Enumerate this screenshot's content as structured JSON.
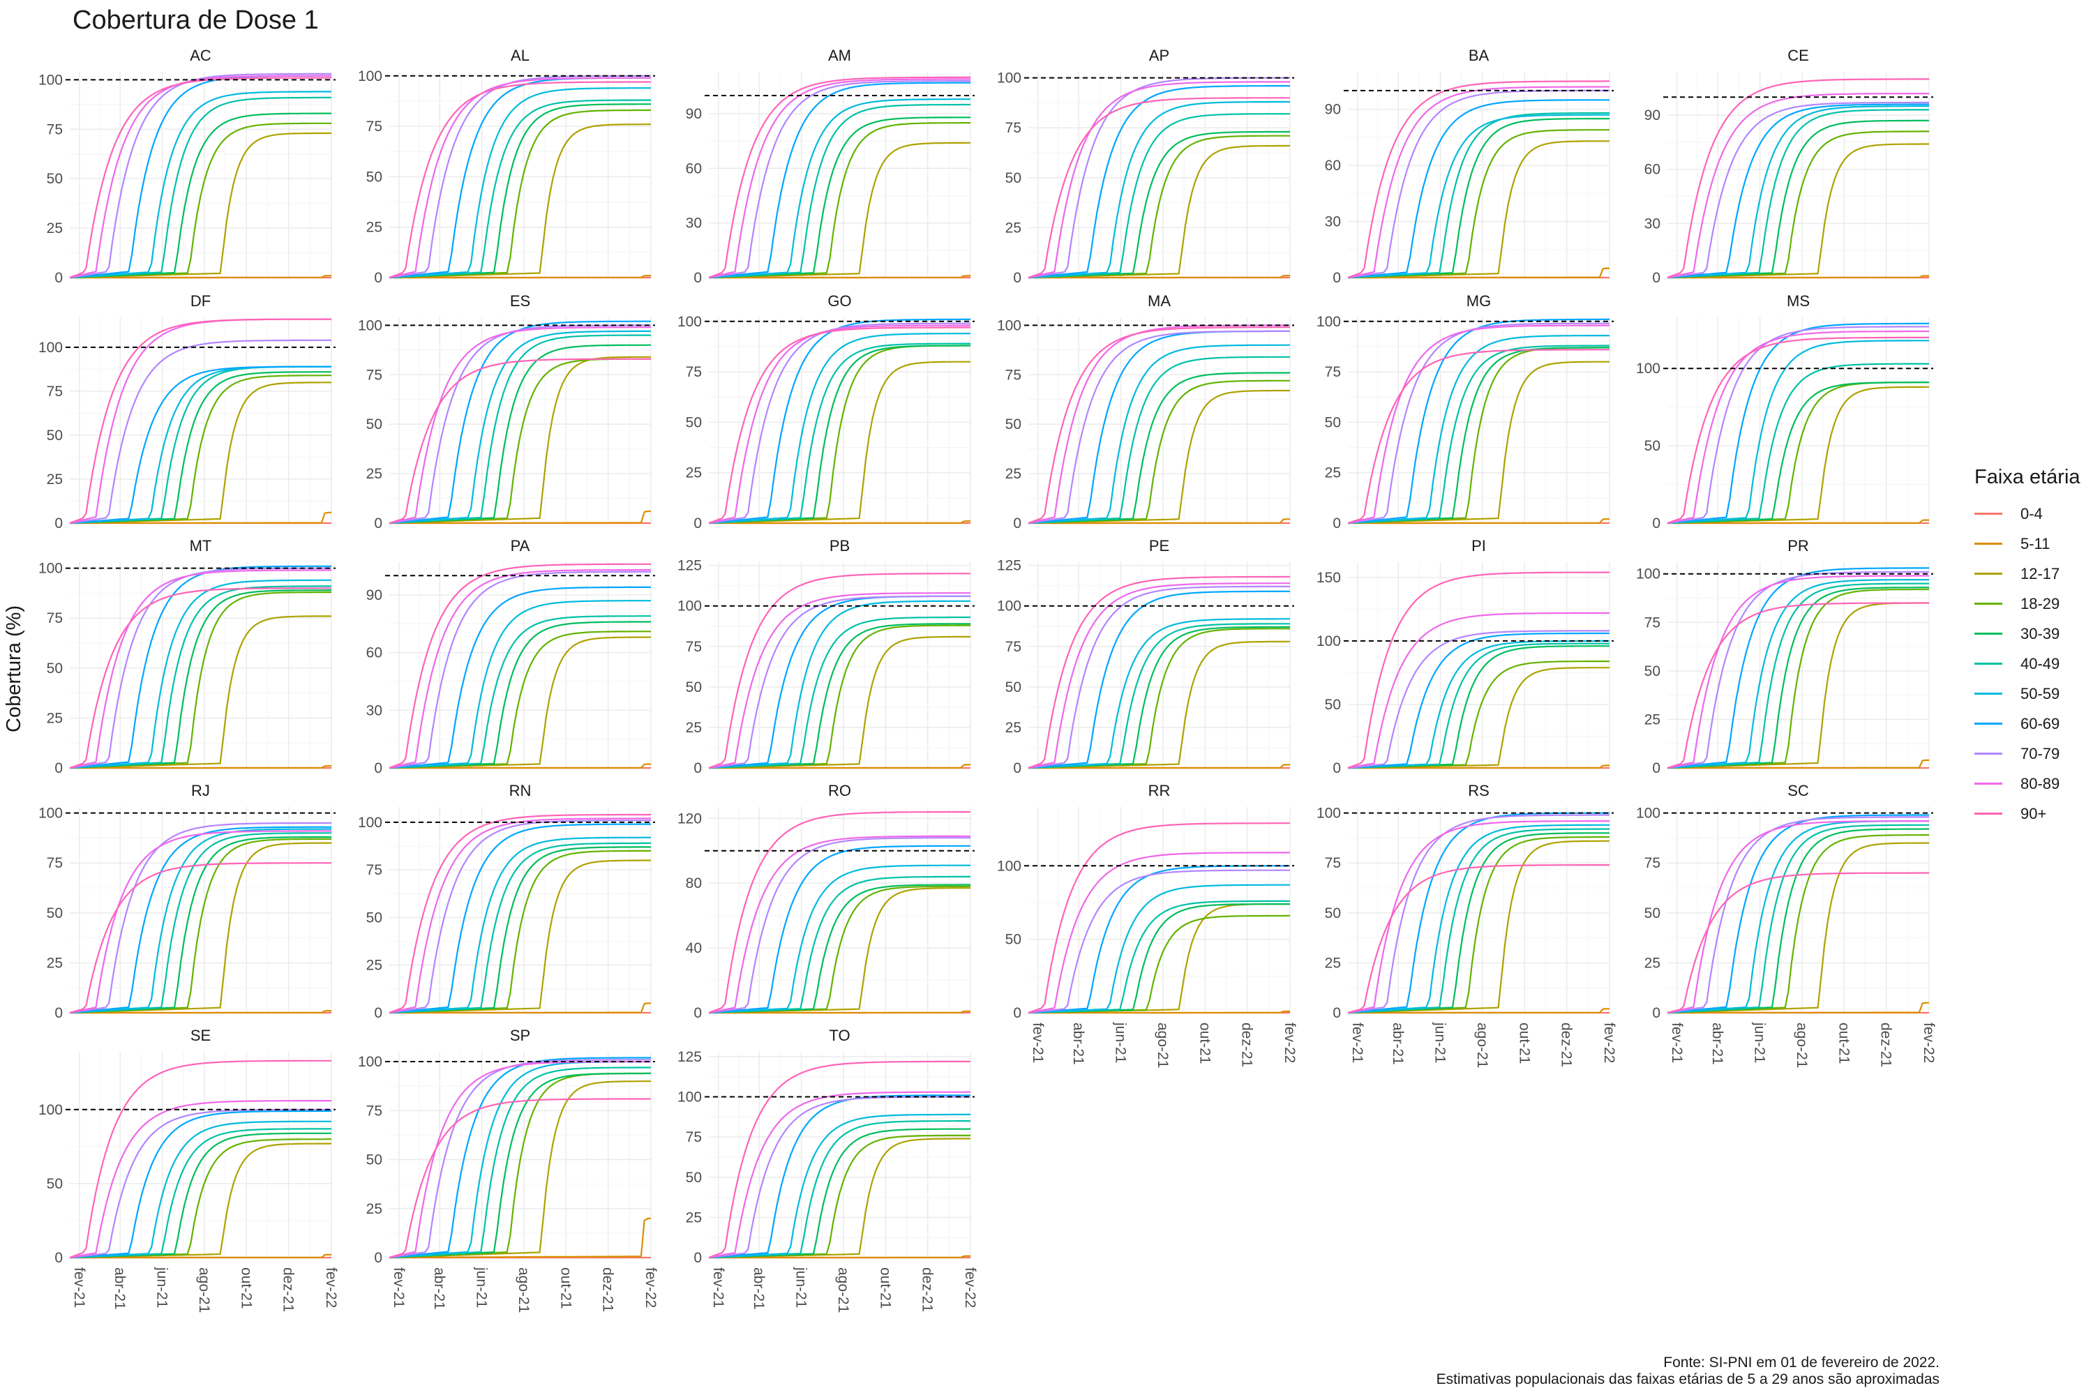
{
  "title": "Cobertura de Dose 1",
  "ylabel": "Cobertura (%)",
  "legend_title": "Faixa etária",
  "caption_line1": "Fonte: SI-PNI em 01 de fevereiro de 2022.",
  "caption_line2": "Estimativas populacionais das faixas etárias de 5 a 29 anos são aproximadas",
  "chart_data": {
    "type": "line",
    "facet_by": "UF",
    "x_tick_labels": [
      "fev-21",
      "abr-21",
      "jun-21",
      "ago-21",
      "out-21",
      "dez-21",
      "fev-22"
    ],
    "x_range": [
      "2021-01-18",
      "2022-02-01"
    ],
    "reference_line": 100,
    "grid": true,
    "legend_position": "right",
    "groups": [
      "0-4",
      "5-11",
      "12-17",
      "18-29",
      "30-39",
      "40-49",
      "50-59",
      "60-69",
      "70-79",
      "80-89",
      "90+"
    ],
    "colors": [
      "#F8766D",
      "#DB8E00",
      "#AEA200",
      "#64B200",
      "#00BD5C",
      "#00C1A7",
      "#00BADE",
      "#00A6FF",
      "#B385FF",
      "#EF67EB",
      "#FF63B6"
    ],
    "onset_dates": [
      "2022-01-31",
      "2022-01-18",
      "2021-08-25",
      "2021-07-10",
      "2021-06-20",
      "2021-06-01",
      "2021-05-15",
      "2021-04-15",
      "2021-03-15",
      "2021-02-25",
      "2021-02-10"
    ],
    "panels": [
      {
        "uf": "AC",
        "ymax": 104,
        "yticks": [
          0,
          25,
          50,
          75,
          100
        ],
        "final": [
          0,
          1,
          73,
          78,
          83,
          91,
          94,
          102,
          103,
          102,
          101
        ]
      },
      {
        "uf": "AL",
        "ymax": 102,
        "yticks": [
          0,
          25,
          50,
          75,
          100
        ],
        "final": [
          0,
          1,
          76,
          83,
          86,
          88,
          94,
          99,
          100,
          99,
          97
        ]
      },
      {
        "uf": "AM",
        "ymax": 113,
        "yticks": [
          0,
          30,
          60,
          90
        ],
        "final": [
          0,
          1,
          74,
          85,
          88,
          95,
          98,
          107,
          108,
          109,
          110
        ]
      },
      {
        "uf": "AP",
        "ymax": 103,
        "yticks": [
          0,
          25,
          50,
          75,
          100
        ],
        "final": [
          0,
          1,
          66,
          71,
          73,
          82,
          88,
          96,
          100,
          98,
          90
        ]
      },
      {
        "uf": "BA",
        "ymax": 110,
        "yticks": [
          0,
          30,
          60,
          90
        ],
        "final": [
          0,
          5,
          73,
          79,
          85,
          88,
          87,
          95,
          100,
          102,
          105
        ]
      },
      {
        "uf": "CE",
        "ymax": 114,
        "yticks": [
          0,
          30,
          60,
          90
        ],
        "final": [
          0,
          1,
          74,
          81,
          87,
          93,
          95,
          96,
          97,
          102,
          110
        ]
      },
      {
        "uf": "DF",
        "ymax": 117,
        "yticks": [
          0,
          25,
          50,
          75,
          100
        ],
        "final": [
          0,
          6,
          80,
          84,
          86,
          89,
          89,
          89,
          104,
          116,
          116
        ]
      },
      {
        "uf": "ES",
        "ymax": 104,
        "yticks": [
          0,
          25,
          50,
          75,
          100
        ],
        "final": [
          0,
          6,
          84,
          83,
          90,
          95,
          97,
          102,
          100,
          99,
          83
        ]
      },
      {
        "uf": "GO",
        "ymax": 102,
        "yticks": [
          0,
          25,
          50,
          75,
          100
        ],
        "final": [
          0,
          1,
          80,
          88,
          88,
          89,
          94,
          101,
          99,
          98,
          97
        ]
      },
      {
        "uf": "MA",
        "ymax": 104,
        "yticks": [
          0,
          25,
          50,
          75,
          100
        ],
        "final": [
          0,
          2,
          67,
          72,
          76,
          84,
          90,
          97,
          97,
          100,
          99
        ]
      },
      {
        "uf": "MG",
        "ymax": 102,
        "yticks": [
          0,
          25,
          50,
          75,
          100
        ],
        "final": [
          0,
          2,
          80,
          87,
          87,
          88,
          93,
          101,
          99,
          98,
          86
        ]
      },
      {
        "uf": "MS",
        "ymax": 133,
        "yticks": [
          0,
          50,
          100
        ],
        "final": [
          0,
          2,
          88,
          91,
          91,
          103,
          118,
          129,
          127,
          124,
          120
        ]
      },
      {
        "uf": "MT",
        "ymax": 103,
        "yticks": [
          0,
          25,
          50,
          75,
          100
        ],
        "final": [
          0,
          1,
          76,
          88,
          89,
          91,
          94,
          101,
          100,
          99,
          90
        ]
      },
      {
        "uf": "PA",
        "ymax": 107,
        "yticks": [
          0,
          30,
          60,
          90
        ],
        "final": [
          0,
          2,
          68,
          71,
          76,
          79,
          87,
          94,
          102,
          103,
          106
        ]
      },
      {
        "uf": "PB",
        "ymax": 127,
        "yticks": [
          0,
          25,
          50,
          75,
          100,
          125
        ],
        "final": [
          0,
          2,
          81,
          88,
          89,
          93,
          103,
          106,
          106,
          108,
          120
        ]
      },
      {
        "uf": "PE",
        "ymax": 127,
        "yticks": [
          0,
          25,
          50,
          75,
          100,
          125
        ],
        "final": [
          0,
          2,
          78,
          86,
          87,
          89,
          92,
          109,
          112,
          114,
          118
        ]
      },
      {
        "uf": "PI",
        "ymax": 162,
        "yticks": [
          0,
          50,
          100,
          150
        ],
        "final": [
          0,
          2,
          79,
          84,
          96,
          98,
          100,
          106,
          108,
          122,
          154
        ]
      },
      {
        "uf": "PR",
        "ymax": 106,
        "yticks": [
          0,
          25,
          50,
          75,
          100
        ],
        "final": [
          0,
          4,
          85,
          92,
          93,
          95,
          97,
          103,
          101,
          99,
          85
        ]
      },
      {
        "uf": "RJ",
        "ymax": 103,
        "yticks": [
          0,
          25,
          50,
          75,
          100
        ],
        "final": [
          0,
          1,
          85,
          87,
          88,
          90,
          92,
          93,
          95,
          91,
          75
        ]
      },
      {
        "uf": "RN",
        "ymax": 108,
        "yticks": [
          0,
          25,
          50,
          75,
          100
        ],
        "final": [
          0,
          5,
          80,
          85,
          87,
          89,
          92,
          99,
          101,
          102,
          104
        ]
      },
      {
        "uf": "RO",
        "ymax": 127,
        "yticks": [
          0,
          40,
          80,
          120
        ],
        "final": [
          0,
          1,
          77,
          78,
          79,
          84,
          91,
          103,
          108,
          109,
          124
        ]
      },
      {
        "uf": "RR",
        "ymax": 140,
        "yticks": [
          0,
          50,
          100
        ],
        "final": [
          0,
          1,
          74,
          66,
          74,
          76,
          87,
          100,
          97,
          109,
          129
        ]
      },
      {
        "uf": "RS",
        "ymax": 103,
        "yticks": [
          0,
          25,
          50,
          75,
          100
        ],
        "final": [
          0,
          2,
          86,
          88,
          90,
          92,
          94,
          100,
          99,
          96,
          74
        ]
      },
      {
        "uf": "SC",
        "ymax": 103,
        "yticks": [
          0,
          25,
          50,
          75,
          100
        ],
        "final": [
          0,
          5,
          85,
          89,
          92,
          94,
          96,
          99,
          98,
          96,
          70
        ]
      },
      {
        "uf": "SE",
        "ymax": 139,
        "yticks": [
          0,
          50,
          100
        ],
        "final": [
          0,
          2,
          77,
          80,
          84,
          87,
          92,
          99,
          100,
          106,
          133
        ]
      },
      {
        "uf": "SP",
        "ymax": 105,
        "yticks": [
          0,
          25,
          50,
          75,
          100
        ],
        "final": [
          0,
          20,
          90,
          94,
          94,
          97,
          100,
          102,
          101,
          100,
          81
        ]
      },
      {
        "uf": "TO",
        "ymax": 128,
        "yticks": [
          0,
          25,
          50,
          75,
          100,
          125
        ],
        "final": [
          0,
          1,
          74,
          76,
          80,
          85,
          89,
          101,
          100,
          103,
          122
        ]
      }
    ]
  }
}
